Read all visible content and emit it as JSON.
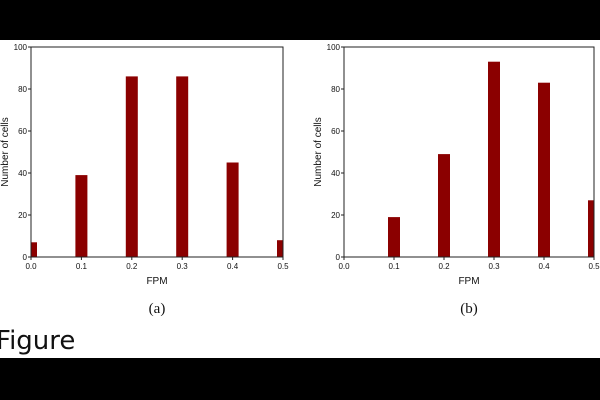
{
  "figure_label": "Figure",
  "chart_data": [
    {
      "type": "bar",
      "panel": "(a)",
      "x": [
        0.0,
        0.1,
        0.2,
        0.3,
        0.4,
        0.5
      ],
      "values": [
        7,
        39,
        86,
        86,
        45,
        8
      ],
      "xlabel": "FPM",
      "ylabel": "Number of cells",
      "xlim": [
        0.0,
        0.5
      ],
      "ylim": [
        0,
        100
      ],
      "xticks": [
        "0.0",
        "0.1",
        "0.2",
        "0.3",
        "0.4",
        "0.5"
      ],
      "yticks": [
        "0",
        "20",
        "40",
        "60",
        "80",
        "100"
      ],
      "bar_color": "#8b0000",
      "grid": false
    },
    {
      "type": "bar",
      "panel": "(b)",
      "x": [
        0.1,
        0.2,
        0.3,
        0.4,
        0.5
      ],
      "values": [
        19,
        49,
        93,
        83,
        27
      ],
      "xlabel": "FPM",
      "ylabel": "Number of cells",
      "xlim": [
        0.0,
        0.5
      ],
      "ylim": [
        0,
        100
      ],
      "xticks": [
        "0.0",
        "0.1",
        "0.2",
        "0.3",
        "0.4",
        "0.5"
      ],
      "yticks": [
        "0",
        "20",
        "40",
        "60",
        "80",
        "100"
      ],
      "bar_color": "#8b0000",
      "grid": false
    }
  ]
}
